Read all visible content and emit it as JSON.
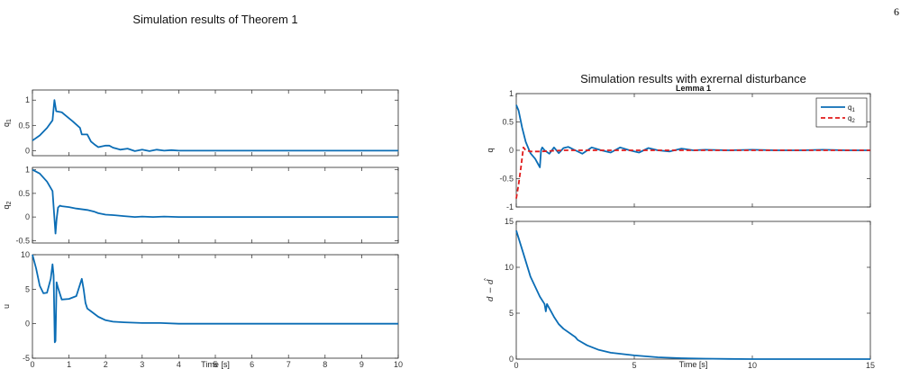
{
  "page": {
    "number": "6"
  },
  "chart_data": [
    {
      "id": "left",
      "type": "line",
      "title": "Simulation results of Theorem 1",
      "xlabel": "Time [s]",
      "xlim": [
        0,
        10
      ],
      "xticks": [
        0,
        1,
        2,
        3,
        4,
        5,
        6,
        7,
        8,
        9,
        10
      ],
      "color": "#0b6db5",
      "subplots": [
        {
          "ylabel": "q1",
          "ylabel_main": "q",
          "ylabel_sub": "1",
          "ylim": [
            -0.1,
            1.2
          ],
          "yticks": [
            0,
            0.5,
            1
          ],
          "series": [
            {
              "x": [
                0,
                0.2,
                0.4,
                0.55,
                0.6,
                0.65,
                0.8,
                0.9,
                1.1,
                1.3,
                1.35,
                1.5,
                1.6,
                1.7,
                1.8,
                2.0,
                2.1,
                2.2,
                2.4,
                2.6,
                2.8,
                3.0,
                3.2,
                3.4,
                3.6,
                3.8,
                4.0,
                4.5,
                5,
                6,
                7,
                8,
                9,
                10
              ],
              "y": [
                0.2,
                0.3,
                0.45,
                0.6,
                1.0,
                0.78,
                0.76,
                0.7,
                0.58,
                0.45,
                0.32,
                0.32,
                0.18,
                0.12,
                0.07,
                0.1,
                0.1,
                0.06,
                0.02,
                0.04,
                -0.01,
                0.02,
                -0.01,
                0.02,
                0.0,
                0.01,
                0.0,
                0.0,
                0.0,
                0.0,
                0.0,
                0.0,
                0.0,
                0.0
              ]
            }
          ]
        },
        {
          "ylabel": "q2",
          "ylabel_main": "q",
          "ylabel_sub": "2",
          "ylim": [
            -0.55,
            1.05
          ],
          "yticks": [
            -0.5,
            0,
            0.5,
            1
          ],
          "series": [
            {
              "x": [
                0,
                0.2,
                0.4,
                0.55,
                0.63,
                0.66,
                0.7,
                0.75,
                0.8,
                1.0,
                1.2,
                1.5,
                1.7,
                1.8,
                2.0,
                2.2,
                2.5,
                2.8,
                3.0,
                3.3,
                3.6,
                4.0,
                4.5,
                5,
                6,
                7,
                8,
                9,
                10
              ],
              "y": [
                1.0,
                0.92,
                0.75,
                0.55,
                -0.35,
                -0.05,
                0.2,
                0.24,
                0.23,
                0.21,
                0.18,
                0.15,
                0.11,
                0.08,
                0.05,
                0.04,
                0.02,
                0.0,
                0.01,
                0.0,
                0.01,
                0.0,
                0.0,
                0.0,
                0.0,
                0.0,
                0.0,
                0.0,
                0.0
              ]
            }
          ]
        },
        {
          "ylabel": "u",
          "ylabel_main": "u",
          "ylabel_sub": "",
          "ylim": [
            -5,
            10
          ],
          "yticks": [
            -5,
            0,
            5,
            10
          ],
          "series": [
            {
              "x": [
                0,
                0.1,
                0.2,
                0.3,
                0.4,
                0.5,
                0.55,
                0.58,
                0.61,
                0.63,
                0.66,
                0.7,
                0.8,
                1.0,
                1.2,
                1.35,
                1.4,
                1.45,
                1.5,
                1.6,
                1.8,
                2.0,
                2.2,
                2.5,
                3.0,
                3.5,
                4.0,
                4.5,
                5,
                6,
                7,
                8,
                9,
                10
              ],
              "y": [
                10,
                8,
                5.5,
                4.4,
                4.5,
                6.5,
                8.6,
                7,
                -2.7,
                -2.5,
                6,
                5.2,
                3.5,
                3.6,
                4.0,
                6.5,
                5,
                3,
                2.2,
                1.8,
                1.0,
                0.5,
                0.3,
                0.2,
                0.1,
                0.1,
                0.0,
                0.0,
                0.0,
                0.0,
                0.0,
                0.0,
                0.0,
                0.0
              ]
            }
          ]
        }
      ]
    },
    {
      "id": "right",
      "type": "line",
      "title": "Simulation results with exrernal disturbance",
      "subtitle": "Lemma 1",
      "xlabel": "Time [s]",
      "xlim": [
        0,
        15
      ],
      "xticks": [
        0,
        5,
        10,
        15
      ],
      "subplots": [
        {
          "ylabel": "q",
          "ylim": [
            -1,
            1
          ],
          "yticks": [
            -1,
            -0.5,
            0,
            0.5,
            1
          ],
          "legend": {
            "placement": "top-right",
            "entries": [
              "q1",
              "q2"
            ]
          },
          "series": [
            {
              "name": "q1",
              "name_main": "q",
              "name_sub": "1",
              "color": "#0b6db5",
              "dash": "none",
              "x": [
                0,
                0.1,
                0.25,
                0.4,
                0.6,
                0.8,
                1.0,
                1.05,
                1.1,
                1.2,
                1.4,
                1.6,
                1.8,
                2.0,
                2.2,
                2.5,
                2.8,
                3.2,
                3.6,
                4.0,
                4.4,
                4.8,
                5.2,
                5.6,
                6.0,
                6.5,
                7,
                7.5,
                8,
                9,
                10,
                11,
                12,
                13,
                14,
                15
              ],
              "y": [
                0.8,
                0.7,
                0.4,
                0.15,
                -0.05,
                -0.15,
                -0.3,
                0.0,
                0.05,
                0.0,
                -0.06,
                0.05,
                -0.05,
                0.04,
                0.06,
                0.0,
                -0.06,
                0.05,
                0.0,
                -0.04,
                0.05,
                0.0,
                -0.04,
                0.04,
                0.0,
                -0.02,
                0.03,
                0.0,
                0.01,
                0.0,
                0.01,
                0.0,
                0.0,
                0.01,
                0.0,
                0.0
              ]
            },
            {
              "name": "q2",
              "name_main": "q",
              "name_sub": "2",
              "color": "#e01b1b",
              "dash": "5 3",
              "x": [
                0,
                0.1,
                0.2,
                0.3,
                0.4,
                0.6,
                0.8,
                1.0,
                2,
                5,
                10,
                15
              ],
              "y": [
                -0.85,
                -0.6,
                -0.3,
                0.05,
                0.0,
                -0.02,
                -0.02,
                -0.02,
                0.0,
                0.0,
                0.0,
                0.0
              ]
            }
          ]
        },
        {
          "ylabel": "d − d̂",
          "ylim": [
            0,
            15
          ],
          "yticks": [
            0,
            5,
            10,
            15
          ],
          "series": [
            {
              "name": "",
              "color": "#0b6db5",
              "dash": "none",
              "x": [
                0,
                0.3,
                0.6,
                1.0,
                1.2,
                1.25,
                1.3,
                1.6,
                1.8,
                2.0,
                2.5,
                2.6,
                3.0,
                3.5,
                4.0,
                5,
                6,
                7,
                8,
                9,
                10,
                12,
                15
              ],
              "y": [
                14,
                11.5,
                9,
                6.8,
                6,
                5.2,
                6,
                4.6,
                3.8,
                3.3,
                2.4,
                2.1,
                1.5,
                1.0,
                0.7,
                0.4,
                0.2,
                0.1,
                0.05,
                0.02,
                0.0,
                0.0,
                0.0
              ]
            }
          ]
        }
      ]
    }
  ]
}
